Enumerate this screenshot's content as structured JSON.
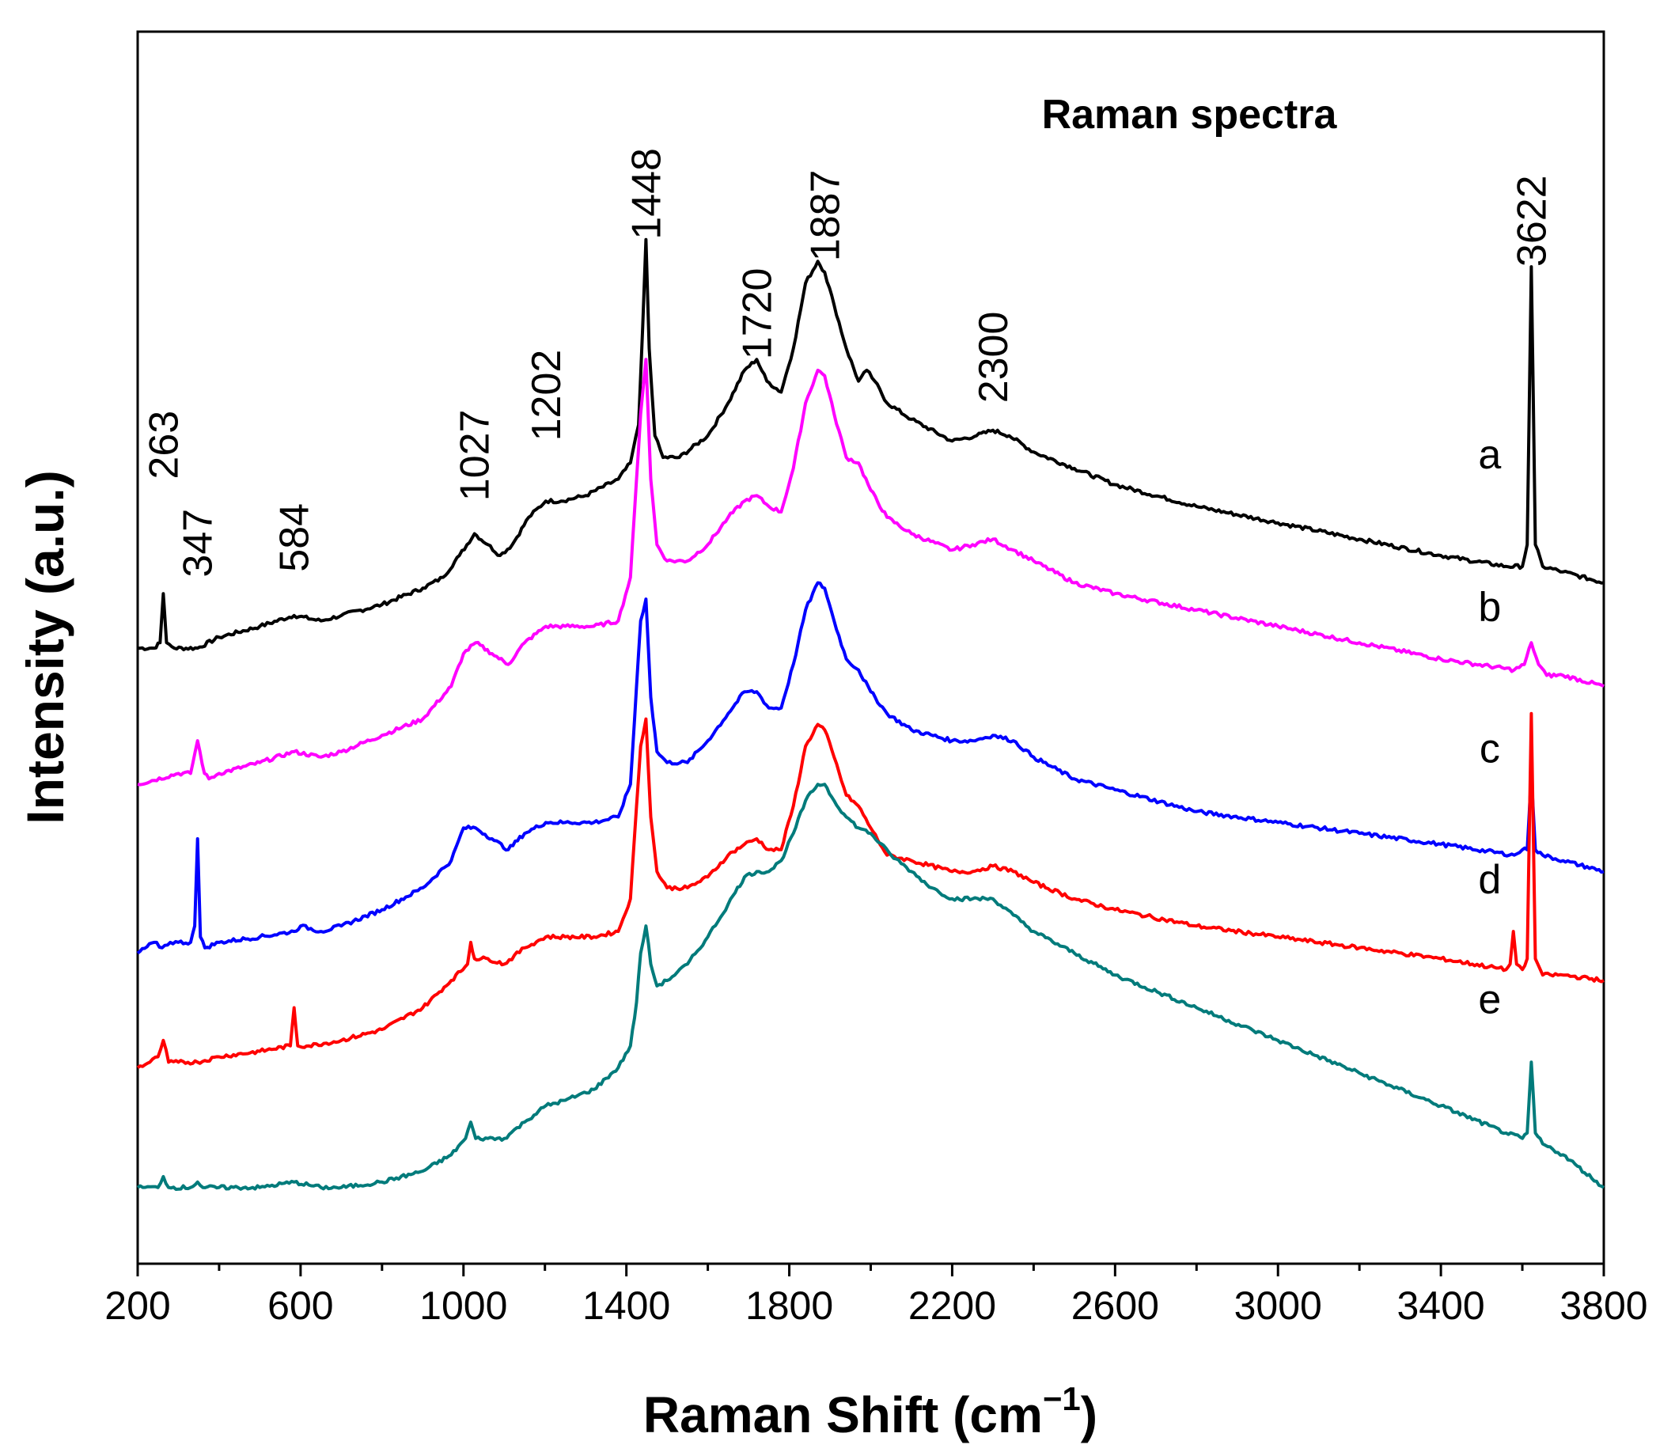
{
  "chart_data": {
    "type": "line",
    "title": "Raman spectra",
    "xlabel": "Raman Shift (cm⁻¹)",
    "xlabel_main": "Raman Shift (cm",
    "xlabel_sup": "−1",
    "xlabel_close": ")",
    "ylabel": "Intensity (a.u.)",
    "xlim": [
      200,
      3800
    ],
    "ylim": [
      0,
      100
    ],
    "x_ticks": [
      200,
      600,
      1000,
      1400,
      1800,
      2200,
      2600,
      3000,
      3400,
      3800
    ],
    "x_tick_labels": [
      "200",
      "600",
      "1000",
      "1400",
      "1800",
      "2200",
      "2600",
      "3000",
      "3400",
      "3800"
    ],
    "x_minor_ticks": [
      400,
      800,
      1200,
      1600,
      2000,
      2400,
      2800,
      3200,
      3600
    ],
    "y_ticks": [],
    "grid": false,
    "peak_labels": [
      {
        "x": 263,
        "y": 68,
        "text": "263"
      },
      {
        "x": 347,
        "y": 59,
        "text": "347"
      },
      {
        "x": 584,
        "y": 59.5,
        "text": "584"
      },
      {
        "x": 1027,
        "y": 66,
        "text": "1027"
      },
      {
        "x": 1202,
        "y": 71.5,
        "text": "1202"
      },
      {
        "x": 1448,
        "y": 90,
        "text": "1448"
      },
      {
        "x": 1720,
        "y": 79,
        "text": "1720"
      },
      {
        "x": 1887,
        "y": 88,
        "text": "1887"
      },
      {
        "x": 2300,
        "y": 75,
        "text": "2300"
      },
      {
        "x": 3622,
        "y": 87.5,
        "text": "3622"
      }
    ],
    "series": [
      {
        "name": "a",
        "color": "#000000",
        "label_x": 3520,
        "label_y": 69,
        "x": [
          200,
          240,
          255,
          263,
          271,
          290,
          347,
          400,
          500,
          584,
          650,
          700,
          800,
          900,
          950,
          990,
          1027,
          1060,
          1090,
          1120,
          1160,
          1202,
          1240,
          1300,
          1380,
          1410,
          1430,
          1440,
          1448,
          1456,
          1470,
          1490,
          1530,
          1600,
          1650,
          1690,
          1720,
          1745,
          1780,
          1810,
          1840,
          1870,
          1887,
          1910,
          1940,
          1970,
          1990,
          2010,
          2040,
          2100,
          2200,
          2260,
          2300,
          2340,
          2400,
          2500,
          2600,
          2800,
          3000,
          3200,
          3400,
          3560,
          3600,
          3612,
          3622,
          3632,
          3650,
          3700,
          3800
        ],
        "values": [
          52.5,
          52.5,
          53,
          57.5,
          53,
          52.5,
          52.5,
          53.5,
          54.5,
          55.5,
          55,
          55.5,
          56.5,
          58,
          59,
          61,
          63,
          62,
          61,
          62,
          64.5,
          66,
          66,
          66.5,
          68,
          69.5,
          73,
          82,
          90,
          80,
          72,
          70,
          70,
          72,
          75,
          78,
          79,
          77,
          76,
          80,
          86,
          88,
          87,
          84,
          80,
          77,
          78,
          77,
          75,
          73.5,
          71.5,
          72,
          72.5,
          72,
          70.5,
          69,
          67.5,
          65.5,
          64,
          62.5,
          61,
          60,
          60,
          62,
          87.5,
          62,
          60,
          59.5,
          58.5
        ]
      },
      {
        "name": "b",
        "color": "#ff00ff",
        "label_x": 3520,
        "label_y": 55,
        "x": [
          200,
          300,
          330,
          347,
          364,
          375,
          400,
          500,
          584,
          650,
          700,
          800,
          900,
          970,
          1000,
          1030,
          1070,
          1110,
          1150,
          1202,
          1250,
          1320,
          1380,
          1410,
          1425,
          1435,
          1448,
          1460,
          1475,
          1500,
          1550,
          1600,
          1650,
          1690,
          1720,
          1750,
          1780,
          1810,
          1840,
          1870,
          1887,
          1910,
          1940,
          1970,
          2000,
          2040,
          2100,
          2200,
          2250,
          2300,
          2350,
          2400,
          2500,
          2600,
          2800,
          3000,
          3200,
          3400,
          3580,
          3605,
          3622,
          3640,
          3660,
          3700,
          3800
        ],
        "values": [
          40,
          41,
          41,
          44,
          41,
          40.5,
          41,
          42,
          43,
          42.5,
          43,
          44.5,
          46,
          49,
          52,
          53,
          52,
          51,
          53,
          54.5,
          54.5,
          54.5,
          55,
          59,
          68,
          74,
          79,
          68,
          62,
          60.5,
          60.5,
          62,
          64.5,
          66,
          66.5,
          65.5,
          65,
          69,
          75,
          78,
          77.5,
          74,
          70,
          69.5,
          67,
          64.5,
          63,
          61.5,
          62,
          62.5,
          61.5,
          60.5,
          58.5,
          57.5,
          56,
          54.5,
          53,
          51.5,
          50.5,
          51,
          53,
          51,
          50,
          50,
          49
        ]
      },
      {
        "name": "c",
        "color": "#0000ff",
        "label_x": 3520,
        "label_y": 42,
        "x": [
          200,
          240,
          260,
          280,
          300,
          330,
          340,
          347,
          354,
          365,
          400,
          500,
          584,
          600,
          650,
          700,
          800,
          900,
          970,
          1000,
          1030,
          1070,
          1110,
          1150,
          1202,
          1250,
          1320,
          1380,
          1410,
          1425,
          1435,
          1448,
          1460,
          1475,
          1500,
          1550,
          1600,
          1650,
          1690,
          1720,
          1750,
          1780,
          1810,
          1840,
          1870,
          1887,
          1910,
          1940,
          1970,
          2000,
          2040,
          2100,
          2200,
          2250,
          2300,
          2350,
          2400,
          2500,
          2600,
          2800,
          3000,
          3200,
          3400,
          3580,
          3600,
          3612,
          3622,
          3632,
          3650,
          3700,
          3800
        ],
        "values": [
          24.5,
          25.5,
          25,
          25.5,
          25.5,
          25.5,
          27,
          35,
          26,
          25,
          25.5,
          26,
          26.5,
          27,
          26.5,
          27,
          28.5,
          30.5,
          33,
          36,
          36,
          35,
          34,
          35.5,
          36.5,
          36.5,
          36.5,
          37,
          40,
          49,
          55,
          57,
          48,
          43,
          42,
          42,
          44,
          46.5,
          48.5,
          48.5,
          47,
          47,
          51,
          56,
          58.5,
          58,
          55,
          51.5,
          50.5,
          48.5,
          46.5,
          45,
          44,
          44,
          44.5,
          44,
          42.5,
          40.5,
          39.5,
          37.5,
          36.5,
          35.5,
          34.5,
          33.5,
          34,
          34,
          41,
          34,
          33.5,
          33,
          32
        ]
      },
      {
        "name": "d",
        "color": "#ff0000",
        "label_x": 3520,
        "label_y": 30,
        "x": [
          200,
          230,
          250,
          263,
          276,
          300,
          347,
          400,
          500,
          575,
          584,
          593,
          620,
          700,
          800,
          900,
          970,
          1010,
          1018,
          1027,
          1060,
          1100,
          1150,
          1202,
          1250,
          1320,
          1380,
          1410,
          1425,
          1435,
          1448,
          1460,
          1475,
          1500,
          1550,
          1600,
          1650,
          1690,
          1720,
          1750,
          1780,
          1810,
          1840,
          1870,
          1887,
          1910,
          1940,
          1970,
          2000,
          2040,
          2100,
          2200,
          2250,
          2300,
          2350,
          2400,
          2500,
          2600,
          2800,
          3000,
          3200,
          3400,
          3560,
          3570,
          3578,
          3586,
          3600,
          3612,
          3622,
          3632,
          3650,
          3700,
          3800
        ],
        "values": [
          14,
          14.5,
          15,
          16.5,
          14.5,
          14.5,
          14.5,
          15,
          15.5,
          16,
          19.5,
          16,
          16,
          16.5,
          17.5,
          19.5,
          22,
          23.5,
          25.5,
          24,
          24,
          23.5,
          25,
          26,
          26,
          26,
          26.5,
          29.5,
          38,
          43.5,
          46,
          37,
          32,
          30.5,
          30.5,
          31.5,
          33.5,
          34.5,
          35,
          34,
          34,
          38,
          43.5,
          45.5,
          45,
          42.5,
          39,
          38,
          36,
          33.5,
          33,
          32,
          32,
          32.5,
          32,
          31,
          29.5,
          28.5,
          27,
          26,
          25,
          24,
          23,
          23.5,
          26.5,
          23.5,
          23,
          24,
          46.5,
          24,
          22.5,
          22.5,
          22
        ]
      },
      {
        "name": "e",
        "color": "#007b7b",
        "label_x": 3520,
        "label_y": 19,
        "x": [
          200,
          250,
          263,
          276,
          330,
          347,
          360,
          400,
          500,
          584,
          650,
          700,
          800,
          900,
          970,
          1005,
          1018,
          1030,
          1060,
          1100,
          1150,
          1202,
          1250,
          1320,
          1380,
          1410,
          1425,
          1435,
          1448,
          1460,
          1475,
          1500,
          1550,
          1600,
          1650,
          1690,
          1720,
          1750,
          1780,
          1810,
          1840,
          1870,
          1887,
          1910,
          1940,
          1970,
          2000,
          2050,
          2100,
          2150,
          2200,
          2250,
          2300,
          2350,
          2400,
          2500,
          2600,
          2800,
          3000,
          3200,
          3400,
          3560,
          3600,
          3612,
          3622,
          3632,
          3650,
          3700,
          3800
        ],
        "values": [
          3,
          3,
          4,
          3,
          3,
          3.5,
          3,
          3,
          3,
          3.5,
          3,
          3,
          3.5,
          4.5,
          6,
          7.5,
          9,
          7.5,
          7.5,
          7.5,
          9,
          10.5,
          11,
          12,
          14,
          16,
          20,
          24.5,
          27,
          23.5,
          21.5,
          22,
          23.5,
          26,
          29,
          31.5,
          32,
          32,
          33,
          35.5,
          38.5,
          40,
          40,
          38.5,
          37,
          36,
          35.5,
          33.5,
          32,
          30.5,
          29.5,
          29.5,
          29.5,
          28,
          26.5,
          24.5,
          22.5,
          19.5,
          16.5,
          13.5,
          10.5,
          8,
          7.5,
          8,
          14.5,
          8,
          7,
          6,
          3
        ]
      }
    ]
  }
}
